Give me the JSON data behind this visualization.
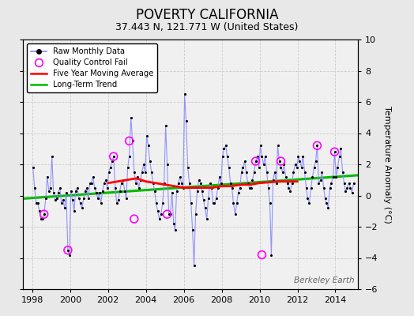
{
  "title": "POVERTY CALIFORNIA",
  "subtitle": "37.443 N, 121.771 W (United States)",
  "ylabel": "Temperature Anomaly (°C)",
  "watermark": "Berkeley Earth",
  "xlim": [
    1997.5,
    2015.2
  ],
  "ylim": [
    -6,
    10
  ],
  "yticks": [
    -6,
    -4,
    -2,
    0,
    2,
    4,
    6,
    8,
    10
  ],
  "xticks": [
    1998,
    2000,
    2002,
    2004,
    2006,
    2008,
    2010,
    2012,
    2014
  ],
  "bg_outer": "#e8e8e8",
  "bg_plot": "#f0f0f0",
  "raw_x": [
    1998.04,
    1998.12,
    1998.21,
    1998.29,
    1998.38,
    1998.46,
    1998.54,
    1998.62,
    1998.71,
    1998.79,
    1998.88,
    1998.96,
    1999.04,
    1999.12,
    1999.21,
    1999.29,
    1999.38,
    1999.46,
    1999.54,
    1999.62,
    1999.71,
    1999.79,
    1999.88,
    1999.96,
    2000.04,
    2000.12,
    2000.21,
    2000.29,
    2000.38,
    2000.46,
    2000.54,
    2000.62,
    2000.71,
    2000.79,
    2000.88,
    2000.96,
    2001.04,
    2001.12,
    2001.21,
    2001.29,
    2001.38,
    2001.46,
    2001.54,
    2001.62,
    2001.71,
    2001.79,
    2001.88,
    2001.96,
    2002.04,
    2002.12,
    2002.21,
    2002.29,
    2002.38,
    2002.46,
    2002.54,
    2002.62,
    2002.71,
    2002.79,
    2002.88,
    2002.96,
    2003.04,
    2003.12,
    2003.21,
    2003.29,
    2003.38,
    2003.46,
    2003.54,
    2003.62,
    2003.71,
    2003.79,
    2003.88,
    2003.96,
    2004.04,
    2004.12,
    2004.21,
    2004.29,
    2004.38,
    2004.46,
    2004.54,
    2004.62,
    2004.71,
    2004.79,
    2004.88,
    2004.96,
    2005.04,
    2005.12,
    2005.21,
    2005.29,
    2005.38,
    2005.46,
    2005.54,
    2005.62,
    2005.71,
    2005.79,
    2005.88,
    2005.96,
    2006.04,
    2006.12,
    2006.21,
    2006.29,
    2006.38,
    2006.46,
    2006.54,
    2006.62,
    2006.71,
    2006.79,
    2006.88,
    2006.96,
    2007.04,
    2007.12,
    2007.21,
    2007.29,
    2007.38,
    2007.46,
    2007.54,
    2007.62,
    2007.71,
    2007.79,
    2007.88,
    2007.96,
    2008.04,
    2008.12,
    2008.21,
    2008.29,
    2008.38,
    2008.46,
    2008.54,
    2008.62,
    2008.71,
    2008.79,
    2008.88,
    2008.96,
    2009.04,
    2009.12,
    2009.21,
    2009.29,
    2009.38,
    2009.46,
    2009.54,
    2009.62,
    2009.71,
    2009.79,
    2009.88,
    2009.96,
    2010.04,
    2010.12,
    2010.21,
    2010.29,
    2010.38,
    2010.46,
    2010.54,
    2010.62,
    2010.71,
    2010.79,
    2010.88,
    2010.96,
    2011.04,
    2011.12,
    2011.21,
    2011.29,
    2011.38,
    2011.46,
    2011.54,
    2011.62,
    2011.71,
    2011.79,
    2011.88,
    2011.96,
    2012.04,
    2012.12,
    2012.21,
    2012.29,
    2012.38,
    2012.46,
    2012.54,
    2012.62,
    2012.71,
    2012.79,
    2012.88,
    2012.96,
    2013.04,
    2013.12,
    2013.21,
    2013.29,
    2013.38,
    2013.46,
    2013.54,
    2013.62,
    2013.71,
    2013.79,
    2013.88,
    2013.96,
    2014.04,
    2014.12,
    2014.21,
    2014.29,
    2014.38,
    2014.46,
    2014.54,
    2014.62,
    2014.71,
    2014.79,
    2014.88,
    2014.96
  ],
  "raw_y": [
    1.8,
    0.5,
    -0.5,
    -0.5,
    -1.0,
    -1.5,
    -1.5,
    -1.2,
    -0.2,
    1.2,
    0.3,
    0.5,
    2.5,
    0.2,
    -0.3,
    -0.2,
    0.2,
    0.5,
    -0.5,
    -0.3,
    -0.8,
    0.2,
    -3.5,
    -3.8,
    0.3,
    -0.3,
    -1.0,
    0.3,
    0.5,
    -0.2,
    -0.5,
    -0.8,
    -0.2,
    0.3,
    0.5,
    -0.2,
    0.8,
    0.8,
    1.2,
    0.5,
    0.2,
    -0.2,
    0.2,
    -0.5,
    0.3,
    0.8,
    1.0,
    0.5,
    1.5,
    1.8,
    2.2,
    2.5,
    0.5,
    -0.5,
    -0.3,
    0.3,
    0.8,
    1.0,
    0.3,
    -0.2,
    1.8,
    2.5,
    5.0,
    3.5,
    1.5,
    0.8,
    1.2,
    0.5,
    1.0,
    1.5,
    2.0,
    1.5,
    3.8,
    3.2,
    2.2,
    1.5,
    0.8,
    0.3,
    -0.5,
    -1.0,
    -1.5,
    -1.2,
    -0.5,
    0.8,
    4.5,
    2.0,
    -1.2,
    -1.2,
    0.2,
    -1.8,
    -2.2,
    0.3,
    0.8,
    1.2,
    0.8,
    0.5,
    6.5,
    4.8,
    1.8,
    0.8,
    -0.5,
    -2.2,
    -4.5,
    -1.2,
    0.3,
    1.0,
    0.8,
    0.3,
    -0.3,
    -0.8,
    -1.5,
    -0.2,
    0.8,
    0.5,
    -0.5,
    -0.5,
    -0.2,
    0.5,
    1.2,
    0.8,
    2.5,
    3.0,
    3.2,
    2.5,
    1.8,
    0.8,
    0.5,
    -0.5,
    -1.2,
    -0.5,
    0.2,
    0.5,
    1.5,
    1.8,
    2.2,
    1.5,
    0.8,
    0.5,
    0.5,
    1.0,
    1.5,
    2.2,
    2.5,
    1.8,
    3.2,
    2.5,
    2.0,
    2.5,
    1.5,
    0.5,
    -0.5,
    -3.8,
    1.0,
    1.5,
    0.8,
    3.2,
    2.2,
    1.8,
    1.5,
    2.0,
    1.2,
    0.8,
    0.5,
    0.3,
    0.8,
    1.5,
    2.0,
    1.8,
    2.5,
    2.2,
    1.8,
    2.5,
    1.5,
    0.5,
    -0.2,
    -0.5,
    0.5,
    1.2,
    1.8,
    2.2,
    3.2,
    0.8,
    1.0,
    1.5,
    0.5,
    -0.2,
    -0.5,
    -0.8,
    0.5,
    0.8,
    1.2,
    2.8,
    1.2,
    1.8,
    2.5,
    3.0,
    1.5,
    0.8,
    0.3,
    0.5,
    0.8,
    0.5,
    0.2,
    0.8
  ],
  "qc_fail_x": [
    1998.62,
    1999.88,
    2002.29,
    2003.12,
    2003.38,
    2005.12,
    2009.79,
    2010.12,
    2011.12,
    2013.04,
    2013.96
  ],
  "qc_fail_y": [
    -1.2,
    -3.5,
    2.5,
    3.5,
    -1.5,
    -1.2,
    2.2,
    -3.8,
    2.2,
    3.2,
    2.8
  ],
  "moving_avg_x": [
    2002.0,
    2002.5,
    2003.0,
    2003.5,
    2004.0,
    2004.5,
    2005.0,
    2005.5,
    2006.0,
    2006.5,
    2007.0,
    2007.5,
    2008.0,
    2008.5,
    2009.0,
    2009.5,
    2010.0,
    2010.5,
    2011.0,
    2011.5,
    2012.0
  ],
  "moving_avg_y": [
    0.8,
    0.9,
    1.0,
    1.1,
    0.9,
    0.8,
    0.7,
    0.6,
    0.5,
    0.5,
    0.5,
    0.5,
    0.6,
    0.6,
    0.7,
    0.7,
    0.8,
    0.85,
    0.9,
    0.9,
    0.9
  ],
  "trend_x": [
    1997.5,
    2015.2
  ],
  "trend_y": [
    -0.2,
    1.3
  ],
  "raw_line_color": "#8888ff",
  "raw_marker_color": "#000000",
  "qc_color": "#ff00ff",
  "moving_avg_color": "#ff0000",
  "trend_color": "#00bb00",
  "grid_color": "#cccccc",
  "title_fontsize": 12,
  "subtitle_fontsize": 9,
  "tick_fontsize": 8,
  "ylabel_fontsize": 8
}
